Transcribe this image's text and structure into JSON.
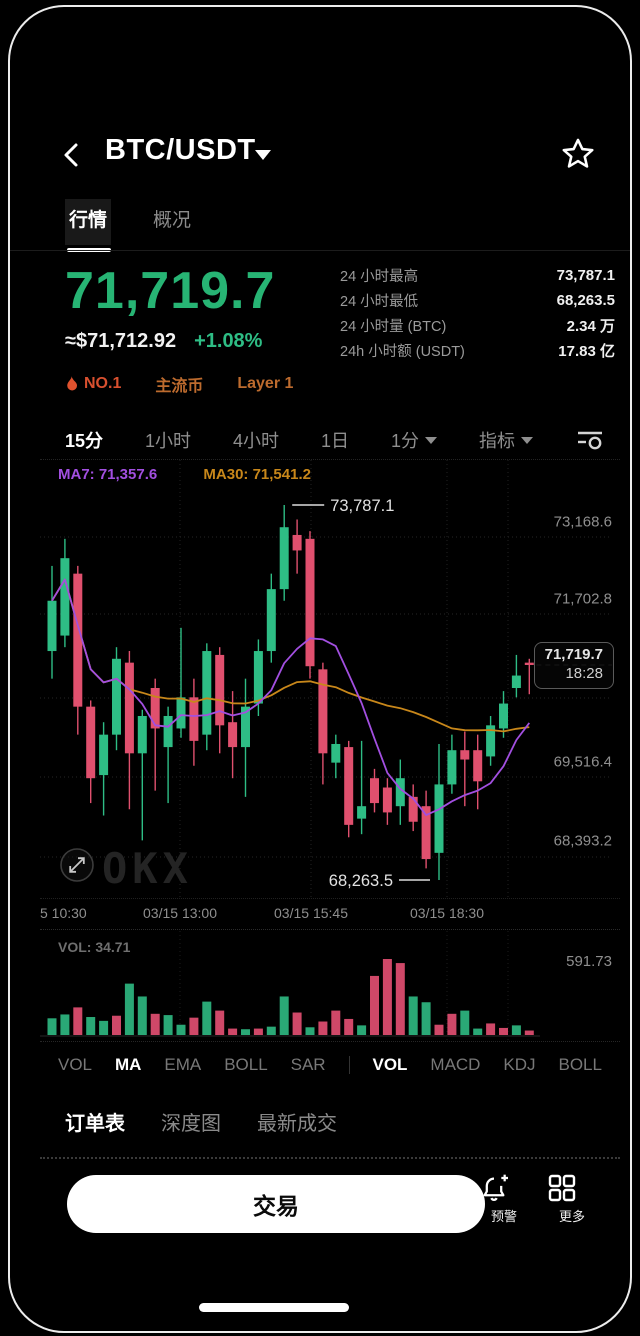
{
  "header": {
    "title": "BTC/USDT"
  },
  "tabs": [
    {
      "label": "行情"
    },
    {
      "label": "概况"
    }
  ],
  "price": {
    "last": "71,719.7",
    "fiat": "≈$71,712.92",
    "change": "+1.08%"
  },
  "stats": [
    {
      "label": "24 小时最高",
      "value": "73,787.1"
    },
    {
      "label": "24 小时最低",
      "value": "68,263.5"
    },
    {
      "label": "24 小时量 (BTC)",
      "value": "2.34 万"
    },
    {
      "label": "24h 小时额 (USDT)",
      "value": "17.83 亿"
    }
  ],
  "badges": [
    {
      "label": "NO.1"
    },
    {
      "label": "主流币"
    },
    {
      "label": "Layer 1"
    }
  ],
  "timeframes": [
    {
      "label": "15分"
    },
    {
      "label": "1小时"
    },
    {
      "label": "4小时"
    },
    {
      "label": "1日"
    },
    {
      "label": "1分"
    },
    {
      "label": "指标"
    }
  ],
  "chart_data": {
    "type": "candlestick",
    "title": "BTC/USDT 15m candles with MA7 / MA30 and volume",
    "ma7_label": "MA7: 71,357.6",
    "ma30_label": "MA30: 71,541.2",
    "y_axis_labels": [
      "73,168.6",
      "71,702.8",
      "69,516.4",
      "68,393.2"
    ],
    "x_axis_labels": [
      "5 10:30",
      "03/15 13:00",
      "03/15 15:45",
      "03/15 18:30"
    ],
    "high_annotation": "73,787.1",
    "low_annotation": "68,263.5",
    "last_price": "71,719.7",
    "last_time": "18:28",
    "watermark": "OKX",
    "price_anchors": {
      "high": 73787.1,
      "last": 71719.7,
      "low": 68263.5
    },
    "candles_ohlc": [
      [
        71900,
        73000,
        71500,
        72550
      ],
      [
        72100,
        73350,
        71950,
        73100
      ],
      [
        72900,
        73000,
        70600,
        71050
      ],
      [
        71050,
        71150,
        69500,
        69900
      ],
      [
        69950,
        70800,
        69300,
        70600
      ],
      [
        70600,
        71950,
        70350,
        71800
      ],
      [
        71750,
        71900,
        69400,
        70300
      ],
      [
        70300,
        71000,
        68900,
        70900
      ],
      [
        71350,
        71500,
        69700,
        70700
      ],
      [
        70400,
        71050,
        69500,
        70900
      ],
      [
        70700,
        72200,
        70550,
        71200
      ],
      [
        71200,
        71500,
        70100,
        70500
      ],
      [
        70600,
        72000,
        70350,
        71900
      ],
      [
        71850,
        71950,
        70300,
        70750
      ],
      [
        70800,
        71300,
        69900,
        70400
      ],
      [
        70400,
        71500,
        69600,
        71050
      ],
      [
        71100,
        72050,
        70900,
        71900
      ],
      [
        71900,
        72900,
        71750,
        72700
      ],
      [
        72700,
        73787.1,
        72550,
        73500
      ],
      [
        73400,
        73600,
        72900,
        73200
      ],
      [
        73350,
        73450,
        71500,
        71700
      ],
      [
        71650,
        71750,
        69800,
        70300
      ],
      [
        70150,
        70600,
        69900,
        70450
      ],
      [
        70400,
        70500,
        68950,
        69150
      ],
      [
        69250,
        70500,
        69000,
        69450
      ],
      [
        69900,
        70050,
        69350,
        69500
      ],
      [
        69750,
        69900,
        69150,
        69350
      ],
      [
        69450,
        70200,
        69150,
        69900
      ],
      [
        69600,
        69800,
        69050,
        69200
      ],
      [
        69450,
        69700,
        68450,
        68600
      ],
      [
        68700,
        70450,
        68263.5,
        69800
      ],
      [
        69800,
        70600,
        69650,
        70350
      ],
      [
        70350,
        70650,
        69450,
        70200
      ],
      [
        70350,
        70600,
        69400,
        69850
      ],
      [
        70250,
        70900,
        70100,
        70750
      ],
      [
        70700,
        71300,
        70550,
        71100
      ],
      [
        71350,
        71850,
        71200,
        71550
      ],
      [
        71750,
        71800,
        71250,
        71719.7
      ]
    ],
    "volume": {
      "label": "VOL: 34.71",
      "axis_max_label": "591.73",
      "axis_max": 591.73,
      "bars": [
        [
          130,
          "g"
        ],
        [
          160,
          "g"
        ],
        [
          215,
          "r"
        ],
        [
          140,
          "g"
        ],
        [
          110,
          "g"
        ],
        [
          150,
          "r"
        ],
        [
          400,
          "g"
        ],
        [
          300,
          "g"
        ],
        [
          165,
          "r"
        ],
        [
          155,
          "g"
        ],
        [
          80,
          "g"
        ],
        [
          135,
          "r"
        ],
        [
          260,
          "g"
        ],
        [
          190,
          "r"
        ],
        [
          50,
          "r"
        ],
        [
          45,
          "g"
        ],
        [
          50,
          "r"
        ],
        [
          65,
          "g"
        ],
        [
          300,
          "g"
        ],
        [
          175,
          "r"
        ],
        [
          60,
          "g"
        ],
        [
          105,
          "r"
        ],
        [
          190,
          "r"
        ],
        [
          125,
          "r"
        ],
        [
          75,
          "g"
        ],
        [
          460,
          "r"
        ],
        [
          591.73,
          "r"
        ],
        [
          560,
          "r"
        ],
        [
          300,
          "g"
        ],
        [
          255,
          "g"
        ],
        [
          80,
          "r"
        ],
        [
          165,
          "r"
        ],
        [
          190,
          "g"
        ],
        [
          50,
          "g"
        ],
        [
          90,
          "r"
        ],
        [
          55,
          "r"
        ],
        [
          75,
          "g"
        ],
        [
          34.71,
          "r"
        ]
      ]
    }
  },
  "indicator_tabs": [
    {
      "label": "VOL"
    },
    {
      "label": "MA"
    },
    {
      "label": "EMA"
    },
    {
      "label": "BOLL"
    },
    {
      "label": "SAR"
    },
    {
      "label": "VOL"
    },
    {
      "label": "MACD"
    },
    {
      "label": "KDJ"
    },
    {
      "label": "BOLL"
    }
  ],
  "bottom_tabs": [
    {
      "label": "订单表"
    },
    {
      "label": "深度图"
    },
    {
      "label": "最新成交"
    }
  ],
  "actions": {
    "trade": "交易",
    "alert": "预警",
    "more": "更多"
  },
  "colors": {
    "up": "#2ebd85",
    "down": "#e0506e",
    "vol_up": "#2aa876",
    "vol_down": "#cf4868",
    "ma7": "#a24fe0",
    "ma30": "#c8871a",
    "price_green": "#27b474",
    "hot_orange": "#d8502f",
    "tag_orange": "#bd6b2e"
  }
}
